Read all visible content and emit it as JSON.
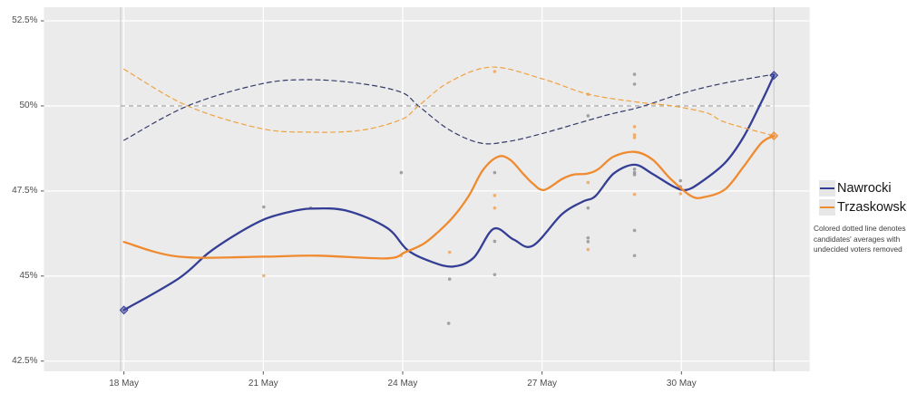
{
  "colors": {
    "panel_bg": "#ebebeb",
    "gridline": "#ffffff",
    "tick_mark": "#555555",
    "nawrocki": "#353e95",
    "trzaskowski": "#ef8a2f",
    "nawrocki_dashed": "#343b68",
    "trzaskowski_dashed": "#f0a23e",
    "fifty_line": "#9e9e9e",
    "event_line": "#c6c6c6",
    "nawrocki_points": "#8e8e93",
    "trzaskowski_points": "#f0a050"
  },
  "legend": {
    "items": [
      {
        "label": "Nawrocki",
        "series": "nawrocki"
      },
      {
        "label": "Trzaskowski",
        "series": "trzaskowski"
      }
    ]
  },
  "note": {
    "lines": [
      "Colored dotted line denotes",
      "candidates' averages with",
      "undecided voters removed"
    ]
  },
  "chart_data": {
    "type": "line",
    "title": "",
    "xlabel": "",
    "ylabel": "",
    "x_unit": "days since 18 May",
    "xlim": [
      -1.72,
      14.76
    ],
    "ylim": [
      42.2,
      52.9
    ],
    "grid": true,
    "legend_position": "right",
    "x_ticks": [
      {
        "day": 0,
        "label": "18 May"
      },
      {
        "day": 3,
        "label": "21 May"
      },
      {
        "day": 6,
        "label": "24 May"
      },
      {
        "day": 9,
        "label": "27 May"
      },
      {
        "day": 12,
        "label": "30 May"
      }
    ],
    "y_ticks": [
      {
        "value": 42.5,
        "label": "42.5%"
      },
      {
        "value": 45,
        "label": "45%"
      },
      {
        "value": 47.5,
        "label": "47.5%"
      },
      {
        "value": 50,
        "label": "50%"
      },
      {
        "value": 52.5,
        "label": "52.5%"
      }
    ],
    "reference_line": {
      "value": 50,
      "from_day": -0.07,
      "to_day": 13.99
    },
    "event_lines": [
      {
        "day": -0.07
      },
      {
        "day": 13.99
      }
    ],
    "series": [
      {
        "name": "Nawrocki (trend)",
        "color_key": "nawrocki",
        "style": "solid",
        "points": [
          [
            0,
            44.0
          ],
          [
            1.18,
            44.93
          ],
          [
            1.82,
            45.68
          ],
          [
            2.46,
            46.26
          ],
          [
            3.01,
            46.66
          ],
          [
            3.52,
            46.87
          ],
          [
            4.02,
            46.98
          ],
          [
            4.8,
            46.92
          ],
          [
            5.66,
            46.42
          ],
          [
            6.11,
            45.76
          ],
          [
            6.64,
            45.41
          ],
          [
            7.09,
            45.28
          ],
          [
            7.53,
            45.54
          ],
          [
            7.96,
            46.39
          ],
          [
            8.39,
            46.07
          ],
          [
            8.8,
            45.89
          ],
          [
            9.43,
            46.82
          ],
          [
            9.88,
            47.19
          ],
          [
            10.15,
            47.35
          ],
          [
            10.54,
            48.01
          ],
          [
            10.99,
            48.27
          ],
          [
            11.38,
            48.0
          ],
          [
            11.83,
            47.63
          ],
          [
            12.1,
            47.53
          ],
          [
            12.41,
            47.75
          ],
          [
            12.94,
            48.33
          ],
          [
            13.33,
            49.07
          ],
          [
            13.72,
            50.11
          ],
          [
            13.99,
            50.9
          ]
        ]
      },
      {
        "name": "Trzaskowski (trend)",
        "color_key": "trzaskowski",
        "style": "solid",
        "points": [
          [
            0,
            46.0
          ],
          [
            1.18,
            45.57
          ],
          [
            3.01,
            45.57
          ],
          [
            4.16,
            45.6
          ],
          [
            5.66,
            45.52
          ],
          [
            6.05,
            45.7
          ],
          [
            6.44,
            45.94
          ],
          [
            6.76,
            46.29
          ],
          [
            7.09,
            46.74
          ],
          [
            7.42,
            47.35
          ],
          [
            7.73,
            48.12
          ],
          [
            8.06,
            48.51
          ],
          [
            8.32,
            48.41
          ],
          [
            8.59,
            48.01
          ],
          [
            8.8,
            47.72
          ],
          [
            9.04,
            47.53
          ],
          [
            9.43,
            47.85
          ],
          [
            9.68,
            47.98
          ],
          [
            9.97,
            48.01
          ],
          [
            10.21,
            48.14
          ],
          [
            10.54,
            48.51
          ],
          [
            10.99,
            48.65
          ],
          [
            11.38,
            48.42
          ],
          [
            11.77,
            47.85
          ],
          [
            12.21,
            47.35
          ],
          [
            12.49,
            47.32
          ],
          [
            12.94,
            47.55
          ],
          [
            13.33,
            48.2
          ],
          [
            13.72,
            48.91
          ],
          [
            13.99,
            49.12
          ]
        ]
      },
      {
        "name": "Nawrocki (undecided removed)",
        "color_key": "nawrocki_dashed",
        "style": "dashed",
        "points": [
          [
            0,
            48.99
          ],
          [
            1.37,
            50.0
          ],
          [
            2.93,
            50.64
          ],
          [
            3.97,
            50.77
          ],
          [
            5.08,
            50.66
          ],
          [
            5.97,
            50.4
          ],
          [
            6.34,
            50.0
          ],
          [
            7.0,
            49.3
          ],
          [
            7.67,
            48.91
          ],
          [
            8.25,
            48.95
          ],
          [
            8.98,
            49.18
          ],
          [
            10.34,
            49.71
          ],
          [
            11.12,
            49.97
          ],
          [
            12.02,
            50.37
          ],
          [
            12.88,
            50.66
          ],
          [
            13.99,
            50.93
          ]
        ]
      },
      {
        "name": "Trzaskowski (undecided removed)",
        "color_key": "trzaskowski_dashed",
        "style": "dashed",
        "points": [
          [
            0,
            51.08
          ],
          [
            1.37,
            50.0
          ],
          [
            2.93,
            49.34
          ],
          [
            3.97,
            49.23
          ],
          [
            5.08,
            49.28
          ],
          [
            5.97,
            49.6
          ],
          [
            6.34,
            50.0
          ],
          [
            7.0,
            50.7
          ],
          [
            7.92,
            51.14
          ],
          [
            9.04,
            50.78
          ],
          [
            10.01,
            50.34
          ],
          [
            11.12,
            50.1
          ],
          [
            11.81,
            50.0
          ],
          [
            12.55,
            49.79
          ],
          [
            12.94,
            49.52
          ],
          [
            13.99,
            49.12
          ]
        ]
      }
    ],
    "scatter": [
      {
        "name": "Nawrocki polls",
        "color_key": "nawrocki_points",
        "points": [
          [
            3.01,
            47.03
          ],
          [
            4.02,
            47.0
          ],
          [
            5.97,
            48.04
          ],
          [
            6.99,
            43.61
          ],
          [
            7.01,
            44.91
          ],
          [
            7.98,
            48.04
          ],
          [
            7.98,
            46.02
          ],
          [
            7.98,
            45.04
          ],
          [
            9.99,
            49.71
          ],
          [
            9.99,
            47.0
          ],
          [
            9.99,
            46.12
          ],
          [
            9.99,
            46.01
          ],
          [
            10.99,
            50.93
          ],
          [
            10.99,
            50.64
          ],
          [
            10.99,
            48.14
          ],
          [
            10.99,
            48.04
          ],
          [
            10.99,
            47.98
          ],
          [
            10.99,
            46.34
          ],
          [
            10.99,
            45.6
          ],
          [
            11.98,
            47.8
          ],
          [
            11.98,
            47.63
          ]
        ]
      },
      {
        "name": "Trzaskowski polls",
        "color_key": "trzaskowski_points",
        "points": [
          [
            3.01,
            45.01
          ],
          [
            5.97,
            45.6
          ],
          [
            7.01,
            45.7
          ],
          [
            7.98,
            51.01
          ],
          [
            7.98,
            47.37
          ],
          [
            7.98,
            47.0
          ],
          [
            9.99,
            50.34
          ],
          [
            9.99,
            47.75
          ],
          [
            9.99,
            45.78
          ],
          [
            10.99,
            49.39
          ],
          [
            10.99,
            49.15
          ],
          [
            10.99,
            49.07
          ],
          [
            10.99,
            47.4
          ],
          [
            11.98,
            47.42
          ]
        ]
      }
    ],
    "start_markers": [
      {
        "series": "nawrocki",
        "day": 0,
        "value": 44.0
      }
    ],
    "end_markers": [
      {
        "series": "nawrocki",
        "day": 13.99,
        "value": 50.9
      },
      {
        "series": "trzaskowski",
        "day": 13.99,
        "value": 49.12
      }
    ]
  }
}
